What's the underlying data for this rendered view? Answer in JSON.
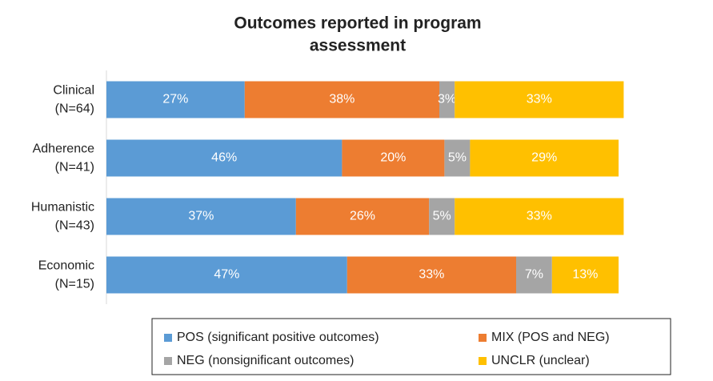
{
  "chart_data": {
    "type": "stacked_bar_horizontal",
    "title": [
      "Outcomes reported in program",
      "assessment"
    ],
    "categories": [
      [
        "Clinical",
        "(N=64)"
      ],
      [
        "Adherence",
        "(N=41)"
      ],
      [
        "Humanistic",
        "(N=43)"
      ],
      [
        "Economic",
        "(N=15)"
      ]
    ],
    "series": [
      {
        "name": "POS (significant positive outcomes)",
        "color": "#5b9bd5",
        "values": [
          27,
          46,
          37,
          47
        ],
        "value_labels": [
          "27%",
          "46%",
          "37%",
          "47%"
        ]
      },
      {
        "name": "MIX (POS and NEG)",
        "color": "#ed7d31",
        "values": [
          38,
          20,
          26,
          33
        ],
        "value_labels": [
          "38%",
          "20%",
          "26%",
          "33%"
        ]
      },
      {
        "name": "NEG (nonsignificant outcomes)",
        "color": "#a5a5a5",
        "values": [
          3,
          5,
          5,
          7
        ],
        "value_labels": [
          "3%",
          "5%",
          "5%",
          "7%"
        ]
      },
      {
        "name": "UNCLR (unclear)",
        "color": "#ffc000",
        "values": [
          33,
          29,
          33,
          13
        ],
        "value_labels": [
          "33%",
          "29%",
          "33%",
          "13%"
        ]
      }
    ],
    "legend": "bottom"
  }
}
